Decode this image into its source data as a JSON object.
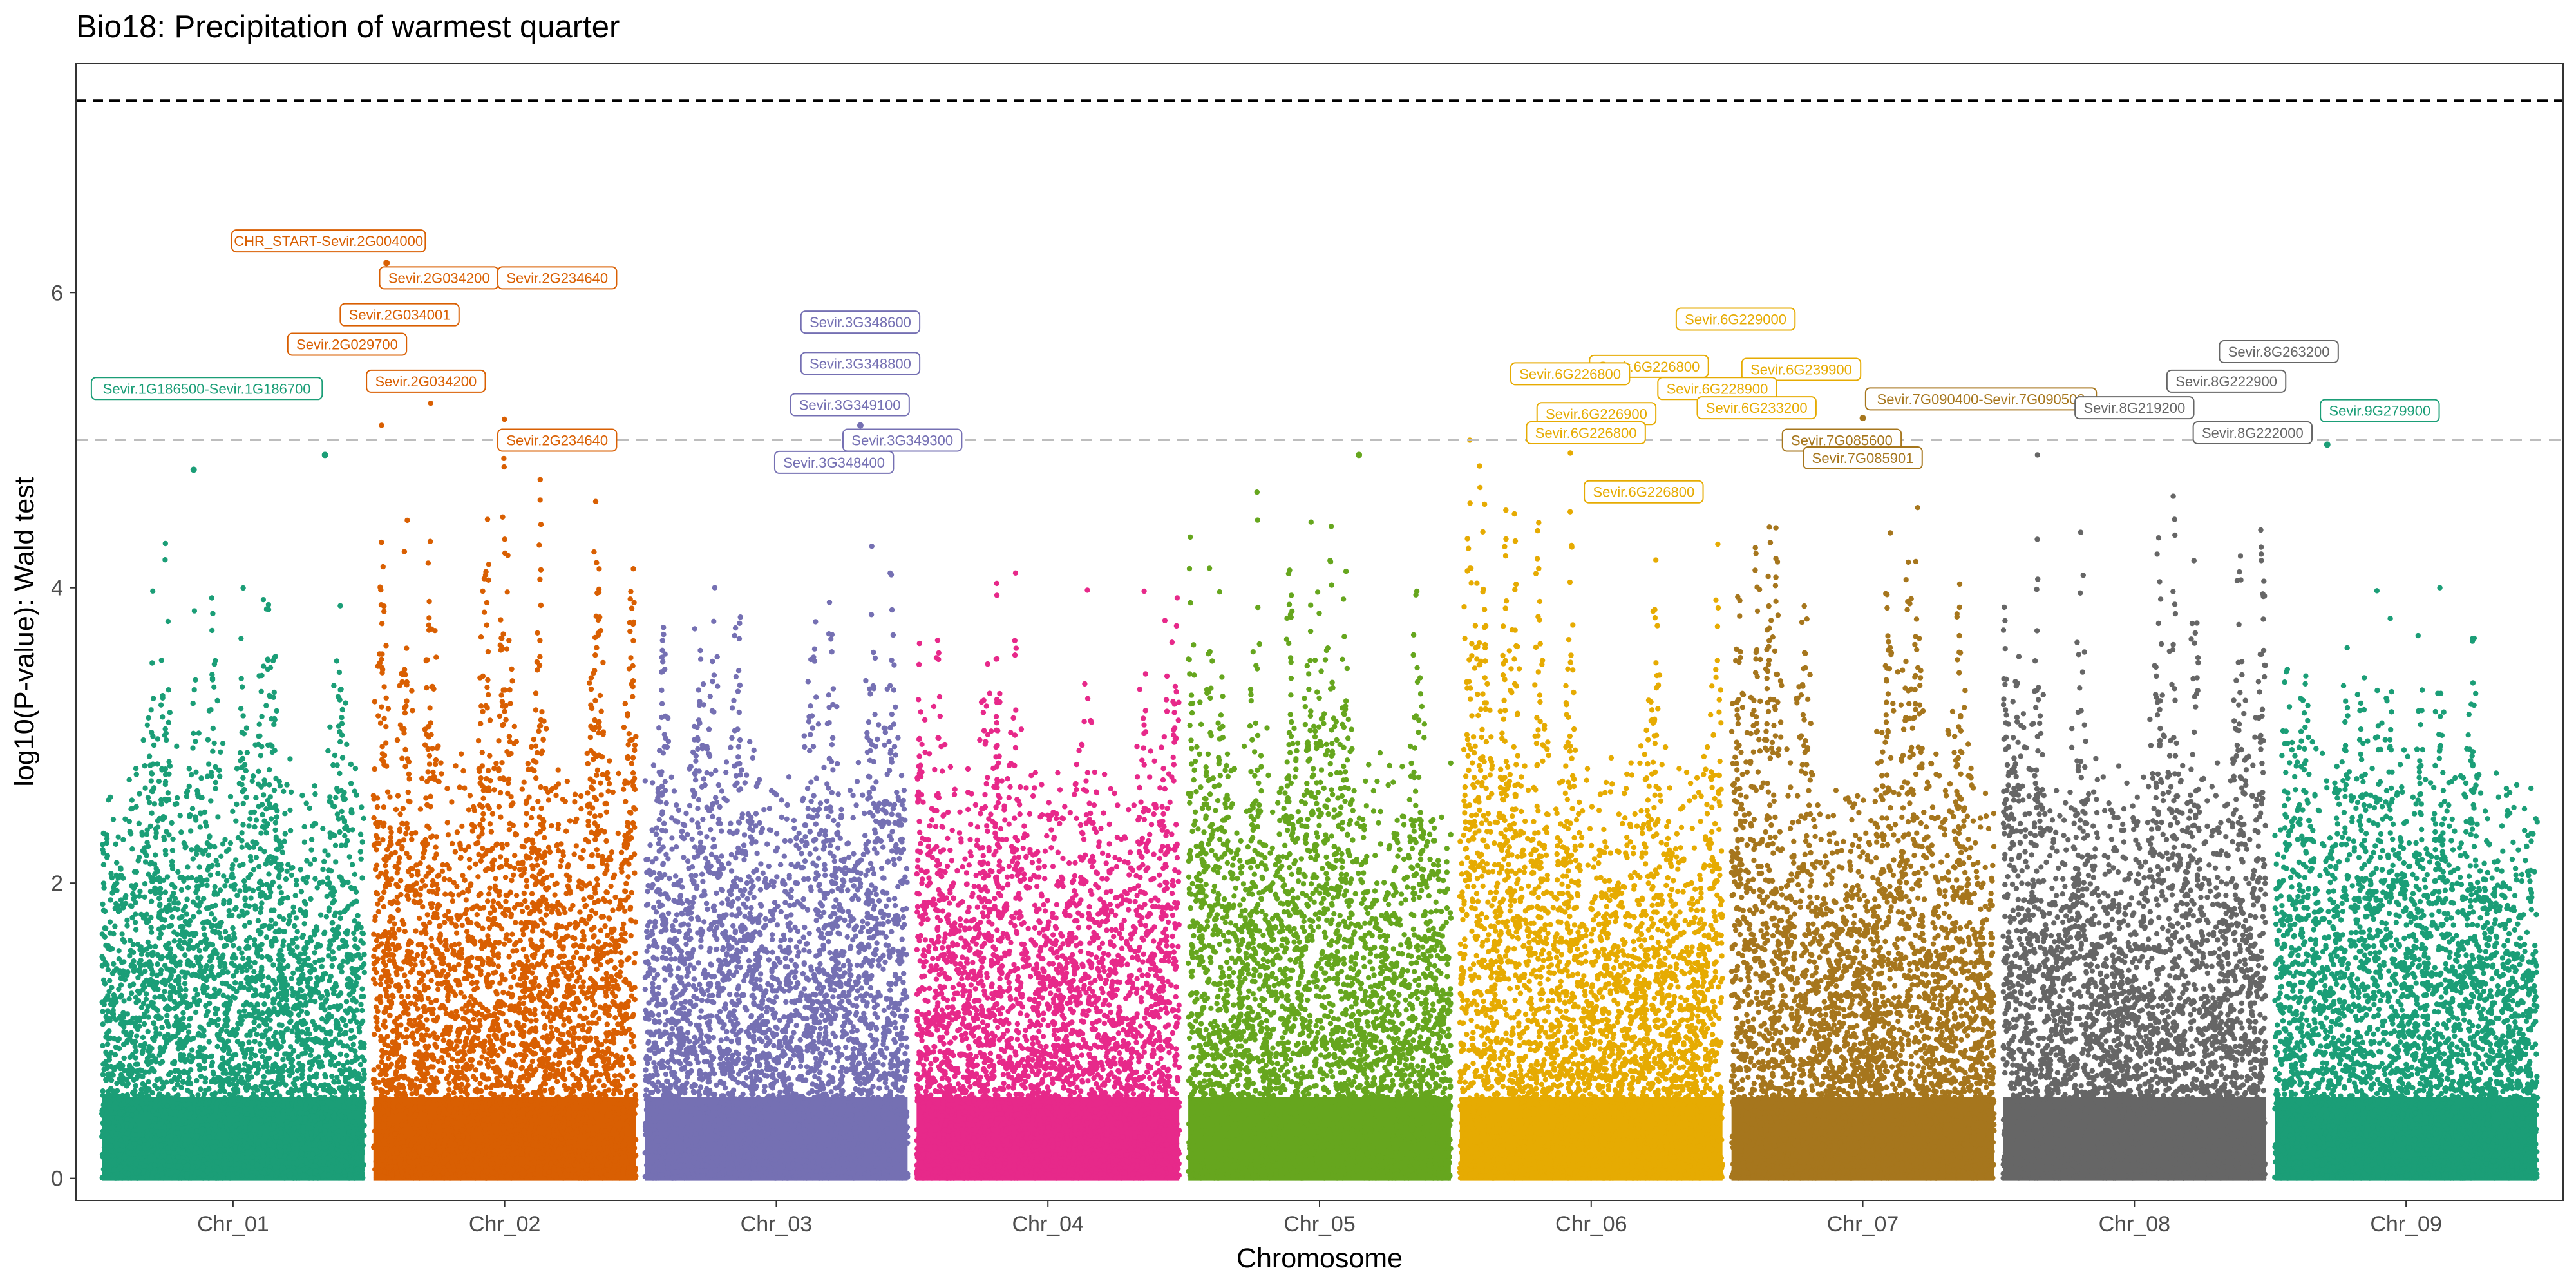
{
  "chart_data": {
    "type": "scatter",
    "title": "Bio18: Precipitation of warmest quarter",
    "xlabel": "Chromosome",
    "ylabel": "log10(P-value): Wald test",
    "ylim": [
      -0.15,
      7.55
    ],
    "yticks": [
      0,
      2,
      4,
      6
    ],
    "grid": false,
    "legend": "none",
    "reference_lines": [
      {
        "name": "genome-wide-threshold",
        "y": 7.3,
        "style": "dashed",
        "color": "#000000"
      },
      {
        "name": "suggestive-threshold",
        "y": 5.0,
        "style": "dashed",
        "color": "#bdbdbd"
      }
    ],
    "chromosomes": [
      {
        "label": "Chr_01",
        "color": "#1b9e77",
        "peak": 4.3
      },
      {
        "label": "Chr_02",
        "color": "#d95f02",
        "peak": 5.25
      },
      {
        "label": "Chr_03",
        "color": "#7570b3",
        "peak": 4.5
      },
      {
        "label": "Chr_04",
        "color": "#e7298a",
        "peak": 4.1
      },
      {
        "label": "Chr_05",
        "color": "#66a61e",
        "peak": 4.7
      },
      {
        "label": "Chr_06",
        "color": "#e6ab02",
        "peak": 5.0
      },
      {
        "label": "Chr_07",
        "color": "#a6761d",
        "peak": 5.0
      },
      {
        "label": "Chr_08",
        "color": "#666666",
        "peak": 4.9
      },
      {
        "label": "Chr_09",
        "color": "#1b9e77",
        "peak": 4.0
      }
    ],
    "highlighted_points": [
      {
        "chrom": 0,
        "pos": 0.85,
        "y": 4.9
      },
      {
        "chrom": 0,
        "pos": 0.35,
        "y": 4.8
      },
      {
        "chrom": 1,
        "pos": 0.05,
        "y": 6.2
      },
      {
        "chrom": 2,
        "pos": 0.82,
        "y": 5.1
      },
      {
        "chrom": 2,
        "pos": 0.55,
        "y": 4.8
      },
      {
        "chrom": 4,
        "pos": 0.65,
        "y": 4.9
      },
      {
        "chrom": 5,
        "pos": 0.92,
        "y": 5.55
      },
      {
        "chrom": 6,
        "pos": 0.5,
        "y": 5.15
      },
      {
        "chrom": 7,
        "pos": 0.9,
        "y": 5.0
      },
      {
        "chrom": 8,
        "pos": 0.2,
        "y": 4.97
      }
    ],
    "annotations": [
      {
        "text": "CHR_START-Sevir.2G004000",
        "chrom": 1,
        "pos": 0.05,
        "y": 6.35,
        "dx": -90
      },
      {
        "text": "Sevir.2G034200",
        "chrom": 1,
        "pos": 0.25,
        "y": 6.1,
        "dx": 0
      },
      {
        "text": "Sevir.2G234640",
        "chrom": 1,
        "pos": 0.7,
        "y": 6.1,
        "dx": 0
      },
      {
        "text": "Sevir.2G034001",
        "chrom": 1,
        "pos": 0.1,
        "y": 5.85,
        "dx": 0
      },
      {
        "text": "Sevir.2G029700",
        "chrom": 1,
        "pos": -0.1,
        "y": 5.65,
        "dx": 0
      },
      {
        "text": "Sevir.2G034200",
        "chrom": 1,
        "pos": 0.2,
        "y": 5.4,
        "dx": 0
      },
      {
        "text": "Sevir.2G234640",
        "chrom": 1,
        "pos": 0.7,
        "y": 5.0,
        "dx": 0
      },
      {
        "text": "Sevir.1G186500-Sevir.1G186700",
        "chrom": 0,
        "pos": 0.4,
        "y": 5.35,
        "dx": 0
      },
      {
        "text": "Sevir.3G348600",
        "chrom": 2,
        "pos": 0.82,
        "y": 5.8,
        "dx": 0
      },
      {
        "text": "Sevir.3G348800",
        "chrom": 2,
        "pos": 0.82,
        "y": 5.52,
        "dx": 0
      },
      {
        "text": "Sevir.3G349100",
        "chrom": 2,
        "pos": 0.78,
        "y": 5.24,
        "dx": 0
      },
      {
        "text": "Sevir.3G349300",
        "chrom": 2,
        "pos": 0.98,
        "y": 5.0,
        "dx": 0
      },
      {
        "text": "Sevir.3G348400",
        "chrom": 2,
        "pos": 0.72,
        "y": 4.85,
        "dx": 0
      },
      {
        "text": "Sevir.6G229000",
        "chrom": 5,
        "pos": 1.05,
        "y": 5.82,
        "dx": 0
      },
      {
        "text": "Sevir.6G226800",
        "chrom": 5,
        "pos": 0.72,
        "y": 5.5,
        "dx": 0
      },
      {
        "text": "Sevir.6G226800",
        "chrom": 5,
        "pos": 0.42,
        "y": 5.45,
        "dx": 0
      },
      {
        "text": "Sevir.6G239900",
        "chrom": 5,
        "pos": 1.3,
        "y": 5.48,
        "dx": 0
      },
      {
        "text": "Sevir.6G228900",
        "chrom": 5,
        "pos": 0.98,
        "y": 5.35,
        "dx": 0
      },
      {
        "text": "Sevir.6G233200",
        "chrom": 5,
        "pos": 1.13,
        "y": 5.22,
        "dx": 0
      },
      {
        "text": "Sevir.6G226900",
        "chrom": 5,
        "pos": 0.52,
        "y": 5.18,
        "dx": 0
      },
      {
        "text": "Sevir.6G226800",
        "chrom": 5,
        "pos": 0.48,
        "y": 5.05,
        "dx": 0
      },
      {
        "text": "Sevir.6G226800",
        "chrom": 5,
        "pos": 0.7,
        "y": 4.65,
        "dx": 0
      },
      {
        "text": "Sevir.7G090400-Sevir.7G090500",
        "chrom": 6,
        "pos": 0.95,
        "y": 5.28,
        "dx": 0
      },
      {
        "text": "Sevir.7G085600",
        "chrom": 6,
        "pos": 0.42,
        "y": 5.0,
        "dx": 0
      },
      {
        "text": "Sevir.7G085901",
        "chrom": 6,
        "pos": 0.5,
        "y": 4.88,
        "dx": 0
      },
      {
        "text": "Sevir.8G263200",
        "chrom": 7,
        "pos": 1.05,
        "y": 5.6,
        "dx": 0
      },
      {
        "text": "Sevir.8G222900",
        "chrom": 7,
        "pos": 0.85,
        "y": 5.4,
        "dx": 0
      },
      {
        "text": "Sevir.8G219200",
        "chrom": 7,
        "pos": 0.5,
        "y": 5.22,
        "dx": 0
      },
      {
        "text": "Sevir.8G222000",
        "chrom": 7,
        "pos": 0.95,
        "y": 5.05,
        "dx": 0
      },
      {
        "text": "Sevir.9G279900",
        "chrom": 8,
        "pos": 0.4,
        "y": 5.2,
        "dx": 0
      }
    ]
  }
}
